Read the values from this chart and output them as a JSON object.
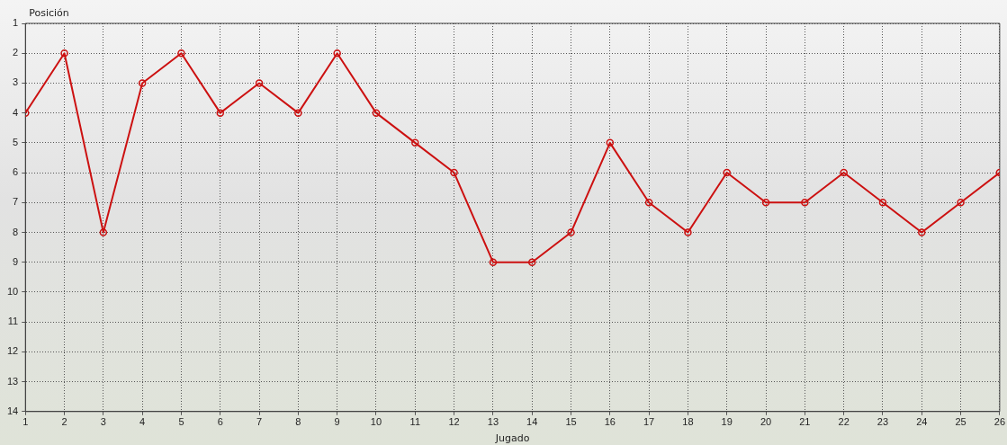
{
  "chart_data": {
    "type": "line",
    "xlabel": "Jugado",
    "ylabel": "Posición",
    "x": [
      1,
      2,
      3,
      4,
      5,
      6,
      7,
      8,
      9,
      10,
      11,
      12,
      13,
      14,
      15,
      16,
      17,
      18,
      19,
      20,
      21,
      22,
      23,
      24,
      25,
      26
    ],
    "series": [
      {
        "color": "#cc1111",
        "values": [
          4,
          2,
          8,
          3,
          2,
          4,
          3,
          4,
          2,
          4,
          5,
          6,
          9,
          9,
          8,
          5,
          7,
          8,
          6,
          7,
          7,
          6,
          7,
          8,
          7,
          6
        ]
      }
    ],
    "xlim": [
      1,
      26
    ],
    "xticks": [
      1,
      2,
      3,
      4,
      5,
      6,
      7,
      8,
      9,
      10,
      11,
      12,
      13,
      14,
      15,
      16,
      17,
      18,
      19,
      20,
      21,
      22,
      23,
      24,
      25,
      26
    ],
    "ylim": [
      14,
      1
    ],
    "yticks": [
      1,
      2,
      3,
      4,
      5,
      6,
      7,
      8,
      9,
      10,
      11,
      12,
      13,
      14
    ],
    "grid": true,
    "legend": false,
    "marker": "circle",
    "line_style": "solid"
  }
}
